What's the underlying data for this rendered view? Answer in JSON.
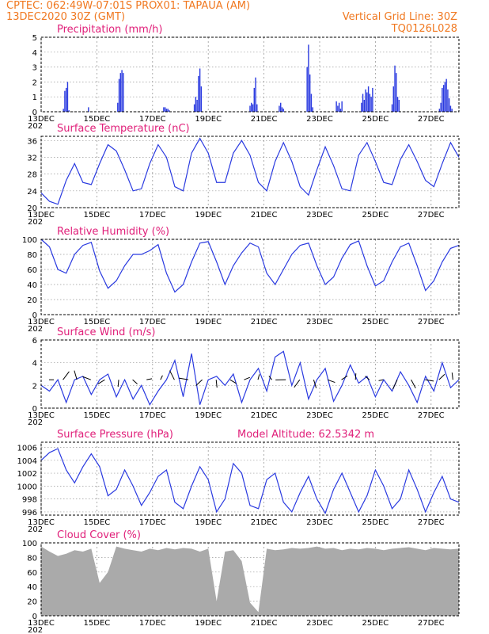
{
  "header": {
    "line1": "CPTEC:   062:49W-07:01S   PROX01: TAPAUA (AM)",
    "line2": "13DEC2020 30Z (GMT)",
    "right1": "Vertical Grid Line: 30Z",
    "right2": "TQ0126L028"
  },
  "x_tick_labels": [
    "13DEC",
    "15DEC",
    "17DEC",
    "19DEC",
    "21DEC",
    "23DEC",
    "25DEC",
    "27DEC"
  ],
  "x_sub_label": "202",
  "colors": {
    "header": "#f07820",
    "panel_title": "#e0207a",
    "series": "#2a3ae0",
    "cloud": "#aaaaaa"
  },
  "chart_data": [
    {
      "type": "bar",
      "title": "Precipitation (mm/h)",
      "x_unit": "days since 13DEC2020 00Z",
      "ylim": [
        0,
        5
      ],
      "yticks": [
        0,
        1,
        2,
        3,
        4,
        5
      ],
      "bar_width_days": 0.04,
      "x": [
        0.8,
        0.85,
        0.9,
        0.95,
        1.0,
        1.7,
        2.75,
        2.8,
        2.85,
        2.9,
        2.95,
        4.4,
        4.45,
        4.5,
        4.55,
        4.6,
        5.5,
        5.55,
        5.6,
        5.65,
        5.7,
        5.75,
        7.5,
        7.55,
        7.6,
        7.65,
        7.7,
        7.75,
        8.55,
        8.6,
        8.65,
        8.7,
        9.55,
        9.6,
        9.65,
        9.7,
        9.75,
        10.6,
        10.65,
        10.7,
        10.75,
        10.8,
        11.5,
        11.55,
        11.6,
        11.65,
        11.7,
        11.75,
        11.8,
        11.85,
        11.9,
        12.6,
        12.65,
        12.7,
        12.75,
        12.8,
        12.85,
        14.3,
        14.35,
        14.4,
        14.45,
        14.5,
        14.55,
        14.6,
        14.65,
        14.7,
        14.75
      ],
      "values": [
        0.2,
        1.4,
        1.6,
        2.0,
        0.1,
        0.3,
        0.6,
        2.2,
        2.6,
        2.8,
        2.6,
        0.3,
        0.3,
        0.2,
        0.2,
        0.1,
        0.5,
        1.0,
        0.8,
        2.4,
        2.9,
        1.7,
        0.4,
        0.6,
        0.5,
        1.6,
        2.3,
        0.5,
        0.4,
        0.6,
        0.3,
        0.2,
        3.0,
        4.5,
        2.5,
        1.2,
        0.3,
        0.7,
        0.4,
        0.6,
        0.2,
        0.7,
        0.6,
        1.2,
        0.8,
        1.5,
        1.3,
        1.7,
        1.2,
        1.0,
        1.6,
        0.5,
        1.7,
        3.1,
        2.6,
        1.0,
        0.8,
        0.2,
        0.6,
        1.6,
        1.8,
        2.0,
        2.2,
        1.5,
        0.9,
        0.4,
        0.2
      ]
    },
    {
      "type": "line",
      "title": "Surface Temperature (nC)",
      "ylim": [
        20,
        37
      ],
      "yticks": [
        20,
        24,
        28,
        32,
        36
      ],
      "x": [
        0,
        0.3,
        0.6,
        0.9,
        1.2,
        1.5,
        1.8,
        2.1,
        2.4,
        2.7,
        3.0,
        3.3,
        3.6,
        3.9,
        4.2,
        4.5,
        4.8,
        5.1,
        5.4,
        5.7,
        6.0,
        6.3,
        6.6,
        6.9,
        7.2,
        7.5,
        7.8,
        8.1,
        8.4,
        8.7,
        9.0,
        9.3,
        9.6,
        9.9,
        10.2,
        10.5,
        10.8,
        11.1,
        11.4,
        11.7,
        12.0,
        12.3,
        12.6,
        12.9,
        13.2,
        13.5,
        13.8,
        14.1,
        14.4,
        14.7,
        15.0
      ],
      "values": [
        23.5,
        21.5,
        20.8,
        26.5,
        30.5,
        26,
        25.5,
        30.5,
        35,
        33.5,
        29,
        24,
        24.5,
        30.5,
        35,
        32,
        25,
        24,
        33,
        36.5,
        33,
        26,
        26,
        33,
        36,
        32.5,
        26,
        24,
        31,
        35.5,
        31,
        25,
        23,
        29,
        34.5,
        30,
        24.5,
        24,
        32.5,
        35.5,
        31,
        26,
        25.5,
        31.5,
        35,
        31,
        26.5,
        25,
        30.5,
        35.5,
        32
      ]
    },
    {
      "type": "line",
      "title": "Relative Humidity (%)",
      "ylim": [
        0,
        100
      ],
      "yticks": [
        0,
        20,
        40,
        60,
        80,
        100
      ],
      "x": [
        0,
        0.3,
        0.6,
        0.9,
        1.2,
        1.5,
        1.8,
        2.1,
        2.4,
        2.7,
        3.0,
        3.3,
        3.6,
        3.9,
        4.2,
        4.5,
        4.8,
        5.1,
        5.4,
        5.7,
        6.0,
        6.3,
        6.6,
        6.9,
        7.2,
        7.5,
        7.8,
        8.1,
        8.4,
        8.7,
        9.0,
        9.3,
        9.6,
        9.9,
        10.2,
        10.5,
        10.8,
        11.1,
        11.4,
        11.7,
        12.0,
        12.3,
        12.6,
        12.9,
        13.2,
        13.5,
        13.8,
        14.1,
        14.4,
        14.7,
        15.0
      ],
      "values": [
        100,
        90,
        60,
        55,
        80,
        92,
        96,
        58,
        35,
        45,
        65,
        80,
        80,
        85,
        93,
        55,
        30,
        40,
        70,
        95,
        97,
        70,
        40,
        65,
        82,
        95,
        90,
        55,
        40,
        60,
        80,
        92,
        95,
        65,
        40,
        50,
        75,
        93,
        98,
        65,
        38,
        45,
        70,
        90,
        95,
        65,
        32,
        45,
        70,
        88,
        92
      ]
    },
    {
      "type": "line",
      "title": "Surface Wind (m/s)",
      "ylim": [
        0,
        6
      ],
      "yticks": [
        0,
        2,
        4,
        6
      ],
      "x": [
        0,
        0.3,
        0.6,
        0.9,
        1.2,
        1.5,
        1.8,
        2.1,
        2.4,
        2.7,
        3.0,
        3.3,
        3.6,
        3.9,
        4.2,
        4.5,
        4.8,
        5.1,
        5.4,
        5.7,
        6.0,
        6.3,
        6.6,
        6.9,
        7.2,
        7.5,
        7.8,
        8.1,
        8.4,
        8.7,
        9.0,
        9.3,
        9.6,
        9.9,
        10.2,
        10.5,
        10.8,
        11.1,
        11.4,
        11.7,
        12.0,
        12.3,
        12.6,
        12.9,
        13.2,
        13.5,
        13.8,
        14.1,
        14.4,
        14.7,
        15.0
      ],
      "values": [
        2.0,
        1.5,
        2.5,
        0.5,
        2.5,
        2.8,
        1.2,
        2.5,
        3.0,
        1.0,
        2.5,
        0.8,
        2.0,
        0.3,
        1.5,
        2.5,
        4.2,
        1.0,
        4.8,
        0.3,
        2.5,
        2.8,
        2.0,
        3.0,
        0.5,
        2.5,
        3.5,
        1.5,
        4.5,
        5.0,
        2.0,
        4.0,
        0.8,
        2.5,
        3.5,
        0.6,
        2.0,
        3.8,
        2.2,
        2.8,
        1.0,
        2.5,
        1.5,
        3.2,
        2.0,
        0.5,
        2.8,
        1.5,
        4.0,
        1.8,
        2.5
      ]
    },
    {
      "type": "line",
      "title": "Surface Pressure (hPa)",
      "annotation": "Model Altitude: 62.5342  m",
      "ylim": [
        995.5,
        1006.8
      ],
      "yticks": [
        996,
        998,
        1000,
        1002,
        1004,
        1006
      ],
      "x": [
        0,
        0.3,
        0.6,
        0.9,
        1.2,
        1.5,
        1.8,
        2.1,
        2.4,
        2.7,
        3.0,
        3.3,
        3.6,
        3.9,
        4.2,
        4.5,
        4.8,
        5.1,
        5.4,
        5.7,
        6.0,
        6.3,
        6.6,
        6.9,
        7.2,
        7.5,
        7.8,
        8.1,
        8.4,
        8.7,
        9.0,
        9.3,
        9.6,
        9.9,
        10.2,
        10.5,
        10.8,
        11.1,
        11.4,
        11.7,
        12.0,
        12.3,
        12.6,
        12.9,
        13.2,
        13.5,
        13.8,
        14.1,
        14.4,
        14.7,
        15.0
      ],
      "values": [
        1004,
        1005.2,
        1005.8,
        1002.5,
        1000.5,
        1003,
        1005,
        1003,
        998.5,
        999.5,
        1002.5,
        1000,
        997,
        999,
        1001.5,
        1002.5,
        997.5,
        996.5,
        1000,
        1003,
        1001,
        996,
        998,
        1003.5,
        1002,
        997,
        996.5,
        1001,
        1002,
        997.5,
        996,
        999,
        1001.5,
        998,
        995.8,
        999.5,
        1002,
        999,
        996,
        998.5,
        1002.5,
        1000,
        996.5,
        998,
        1002.5,
        999.5,
        996,
        999,
        1001.5,
        998,
        997.5
      ]
    },
    {
      "type": "area",
      "title": "Cloud Cover (%)",
      "ylim": [
        0,
        100
      ],
      "yticks": [
        0,
        20,
        40,
        60,
        80,
        100
      ],
      "x": [
        0,
        0.3,
        0.6,
        0.9,
        1.2,
        1.5,
        1.8,
        2.1,
        2.4,
        2.7,
        3.0,
        3.3,
        3.6,
        3.9,
        4.2,
        4.5,
        4.8,
        5.1,
        5.4,
        5.7,
        6.0,
        6.3,
        6.6,
        6.9,
        7.2,
        7.5,
        7.8,
        8.1,
        8.4,
        8.7,
        9.0,
        9.3,
        9.6,
        9.9,
        10.2,
        10.5,
        10.8,
        11.1,
        11.4,
        11.7,
        12.0,
        12.3,
        12.6,
        12.9,
        13.2,
        13.5,
        13.8,
        14.1,
        14.4,
        14.7,
        15.0
      ],
      "values": [
        95,
        88,
        82,
        85,
        90,
        88,
        92,
        45,
        60,
        95,
        92,
        90,
        88,
        92,
        90,
        93,
        91,
        93,
        92,
        88,
        92,
        20,
        88,
        90,
        75,
        18,
        5,
        92,
        90,
        91,
        93,
        92,
        93,
        95,
        92,
        93,
        90,
        92,
        91,
        93,
        92,
        90,
        92,
        93,
        94,
        92,
        90,
        93,
        92,
        91,
        92
      ]
    }
  ]
}
